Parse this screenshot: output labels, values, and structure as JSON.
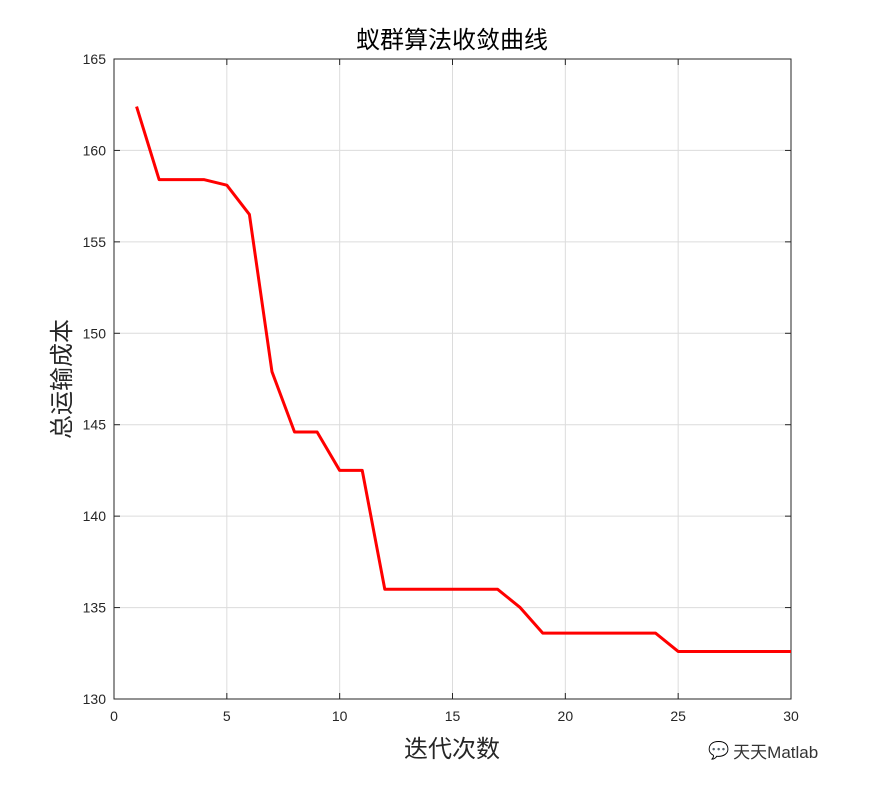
{
  "chart_data": {
    "type": "line",
    "title": "蚁群算法收敛曲线",
    "xlabel": "迭代次数",
    "ylabel": "总运输成本",
    "xlim": [
      0,
      30
    ],
    "ylim": [
      130,
      165
    ],
    "xticks": [
      0,
      5,
      10,
      15,
      20,
      25,
      30
    ],
    "yticks": [
      130,
      135,
      140,
      145,
      150,
      155,
      160,
      165
    ],
    "grid": true,
    "series": [
      {
        "color": "#ff0000",
        "x": [
          1,
          2,
          3,
          4,
          5,
          6,
          7,
          8,
          9,
          10,
          11,
          12,
          13,
          14,
          15,
          16,
          17,
          18,
          19,
          20,
          21,
          22,
          23,
          24,
          25,
          26,
          27,
          28,
          29,
          30
        ],
        "y": [
          162.4,
          158.4,
          158.4,
          158.4,
          158.1,
          156.5,
          147.9,
          144.6,
          144.6,
          142.5,
          142.5,
          136.0,
          136.0,
          136.0,
          136.0,
          136.0,
          136.0,
          135.0,
          133.6,
          133.6,
          133.6,
          133.6,
          133.6,
          133.6,
          132.6,
          132.6,
          132.6,
          132.6,
          132.6,
          132.6
        ]
      }
    ]
  },
  "watermark": "天天Matlab"
}
